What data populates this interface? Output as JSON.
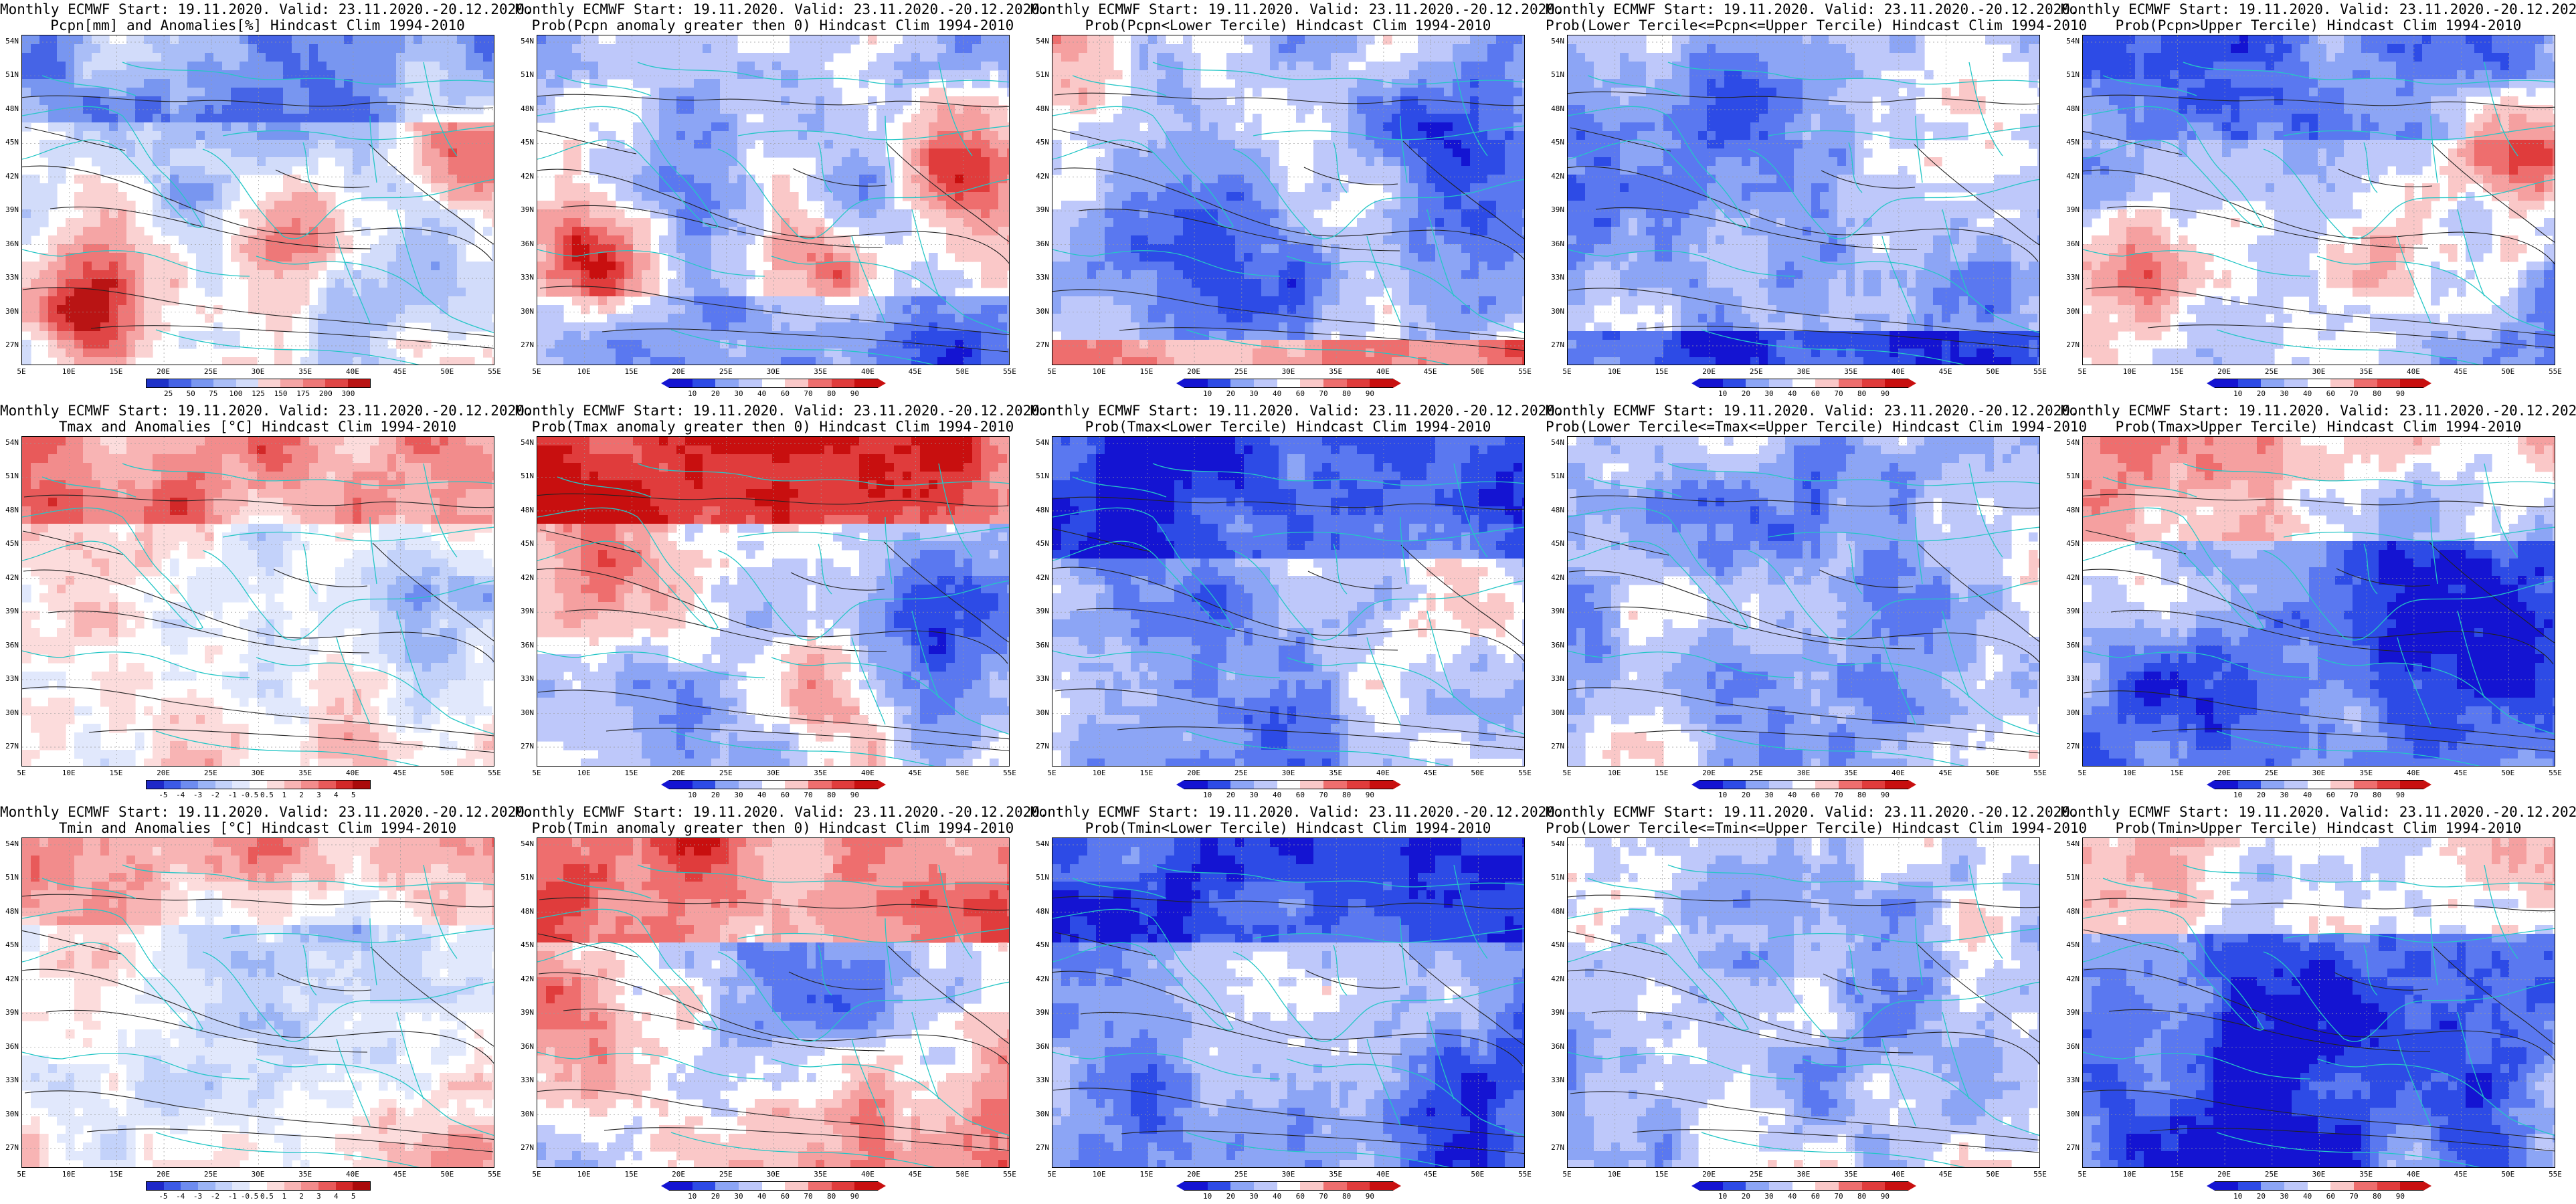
{
  "page": {
    "lat_labels": [
      "54N",
      "51N",
      "48N",
      "45N",
      "42N",
      "39N",
      "36N",
      "33N",
      "30N",
      "27N"
    ],
    "lon_labels": [
      "5E",
      "10E",
      "15E",
      "20E",
      "25E",
      "30E",
      "35E",
      "40E",
      "45E",
      "50E",
      "55E"
    ],
    "grid_color": "#9a9a9a",
    "coast_color": "#25c6c6",
    "contour_color": "#222222"
  },
  "panels": [
    {
      "line1": "Monthly ECMWF Start: 19.11.2020. Valid: 23.11.2020.-20.12.2020.",
      "line2": "Pcpn[mm] and Anomalies[%] Hindcast Clim 1994-2010",
      "legend": [
        "25",
        "50",
        "75",
        "100",
        "125",
        "150",
        "175",
        "200",
        "300"
      ],
      "scale": "pcpn_anom",
      "field": "pcpn_anom"
    },
    {
      "line1": "Monthly ECMWF Start: 19.11.2020. Valid: 23.11.2020.-20.12.2020.",
      "line2": "Prob(Pcpn anomaly greater then 0) Hindcast Clim 1994-2010",
      "legend": [
        "10",
        "20",
        "30",
        "40",
        "60",
        "70",
        "80",
        "90"
      ],
      "scale": "prob",
      "field": "pcpn_pos"
    },
    {
      "line1": "Monthly ECMWF Start: 19.11.2020. Valid: 23.11.2020.-20.12.2020.",
      "line2": "Prob(Pcpn<Lower Tercile) Hindcast Clim 1994-2010",
      "legend": [
        "10",
        "20",
        "30",
        "40",
        "60",
        "70",
        "80",
        "90"
      ],
      "scale": "prob",
      "field": "pcpn_lower"
    },
    {
      "line1": "Monthly ECMWF Start: 19.11.2020. Valid: 23.11.2020.-20.12.2020.",
      "line2": "Prob(Lower Tercile<=Pcpn<=Upper Tercile) Hindcast Clim 1994-2010",
      "legend": [
        "10",
        "20",
        "30",
        "40",
        "60",
        "70",
        "80",
        "90"
      ],
      "scale": "prob",
      "field": "pcpn_middle"
    },
    {
      "line1": "Monthly ECMWF Start: 19.11.2020. Valid: 23.11.2020.-20.12.2020.",
      "line2": "Prob(Pcpn>Upper Tercile) Hindcast Clim 1994-2010",
      "legend": [
        "10",
        "20",
        "30",
        "40",
        "60",
        "70",
        "80",
        "90"
      ],
      "scale": "prob",
      "field": "pcpn_upper"
    },
    {
      "line1": "Monthly ECMWF Start: 19.11.2020. Valid: 23.11.2020.-20.12.2020.",
      "line2": "Tmax and Anomalies [°C] Hindcast Clim 1994-2010",
      "legend": [
        "-5",
        "-4",
        "-3",
        "-2",
        "-1",
        "-0.5",
        "0.5",
        "1",
        "2",
        "3",
        "4",
        "5"
      ],
      "scale": "temp_anom",
      "field": "tmax_anom"
    },
    {
      "line1": "Monthly ECMWF Start: 19.11.2020. Valid: 23.11.2020.-20.12.2020.",
      "line2": "Prob(Tmax anomaly greater then 0) Hindcast Clim 1994-2010",
      "legend": [
        "10",
        "20",
        "30",
        "40",
        "60",
        "70",
        "80",
        "90"
      ],
      "scale": "prob",
      "field": "tmax_pos"
    },
    {
      "line1": "Monthly ECMWF Start: 19.11.2020. Valid: 23.11.2020.-20.12.2020.",
      "line2": "Prob(Tmax<Lower Tercile) Hindcast Clim 1994-2010",
      "legend": [
        "10",
        "20",
        "30",
        "40",
        "60",
        "70",
        "80",
        "90"
      ],
      "scale": "prob",
      "field": "tmax_lower"
    },
    {
      "line1": "Monthly ECMWF Start: 19.11.2020. Valid: 23.11.2020.-20.12.2020.",
      "line2": "Prob(Lower Tercile<=Tmax<=Upper Tercile) Hindcast Clim 1994-2010",
      "legend": [
        "10",
        "20",
        "30",
        "40",
        "60",
        "70",
        "80",
        "90"
      ],
      "scale": "prob",
      "field": "tmax_middle"
    },
    {
      "line1": "Monthly ECMWF Start: 19.11.2020. Valid: 23.11.2020.-20.12.2020.",
      "line2": "Prob(Tmax>Upper Tercile) Hindcast Clim 1994-2010",
      "legend": [
        "10",
        "20",
        "30",
        "40",
        "60",
        "70",
        "80",
        "90"
      ],
      "scale": "prob",
      "field": "tmax_upper"
    },
    {
      "line1": "Monthly ECMWF Start: 19.11.2020. Valid: 23.11.2020.-20.12.2020.",
      "line2": "Tmin and Anomalies [°C] Hindcast Clim 1994-2010",
      "legend": [
        "-5",
        "-4",
        "-3",
        "-2",
        "-1",
        "-0.5",
        "0.5",
        "1",
        "2",
        "3",
        "4",
        "5"
      ],
      "scale": "temp_anom",
      "field": "tmin_anom"
    },
    {
      "line1": "Monthly ECMWF Start: 19.11.2020. Valid: 23.11.2020.-20.12.2020.",
      "line2": "Prob(Tmin anomaly greater then 0) Hindcast Clim 1994-2010",
      "legend": [
        "10",
        "20",
        "30",
        "40",
        "60",
        "70",
        "80",
        "90"
      ],
      "scale": "prob",
      "field": "tmin_pos"
    },
    {
      "line1": "Monthly ECMWF Start: 19.11.2020. Valid: 23.11.2020.-20.12.2020.",
      "line2": "Prob(Tmin<Lower Tercile) Hindcast Clim 1994-2010",
      "legend": [
        "10",
        "20",
        "30",
        "40",
        "60",
        "70",
        "80",
        "90"
      ],
      "scale": "prob",
      "field": "tmin_lower"
    },
    {
      "line1": "Monthly ECMWF Start: 19.11.2020. Valid: 23.11.2020.-20.12.2020.",
      "line2": "Prob(Lower Tercile<=Tmin<=Upper Tercile) Hindcast Clim 1994-2010",
      "legend": [
        "10",
        "20",
        "30",
        "40",
        "60",
        "70",
        "80",
        "90"
      ],
      "scale": "prob",
      "field": "tmin_middle"
    },
    {
      "line1": "Monthly ECMWF Start: 19.11.2020. Valid: 23.11.2020.-20.12.2020.",
      "line2": "Prob(Tmin>Upper Tercile) Hindcast Clim 1994-2010",
      "legend": [
        "10",
        "20",
        "30",
        "40",
        "60",
        "70",
        "80",
        "90"
      ],
      "scale": "prob",
      "field": "tmin_upper"
    }
  ],
  "scales": {
    "prob": [
      "#1414d2",
      "#2d4be6",
      "#5a78f0",
      "#8ca5f5",
      "#bec8fa",
      "#ffffff",
      "#fac8c8",
      "#f5a0a0",
      "#ee6e6e",
      "#e03c3c",
      "#c80f0f"
    ],
    "temp_anom": [
      "#1e28c8",
      "#3c5ae6",
      "#6e8cf0",
      "#9bb4f5",
      "#c3d2fa",
      "#e1e8fc",
      "#ffffff",
      "#fcdcdc",
      "#f8b4b4",
      "#f28c8c",
      "#e85a5a",
      "#d22828",
      "#aa0a0a"
    ],
    "pcpn_anom": [
      "#1e32c8",
      "#4664e6",
      "#7896f0",
      "#aabef7",
      "#d2dcfa",
      "#ffffff",
      "#fad2d2",
      "#f5a5a5",
      "#ee7878",
      "#e04646",
      "#b91414"
    ]
  }
}
